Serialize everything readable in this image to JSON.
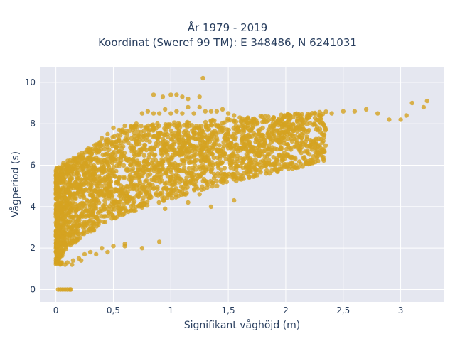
{
  "chart_data": {
    "type": "scatter",
    "title_line1": "År 1979 - 2019",
    "title_line2": "Koordinat (Sweref 99 TM): E 348486, N 6241031",
    "xlabel": "Signifikant våghöjd (m)",
    "ylabel": "Vågperiod (s)",
    "xlim": [
      -0.14,
      3.38
    ],
    "ylim": [
      -0.6,
      10.75
    ],
    "x_ticks": [
      0,
      0.5,
      1,
      1.5,
      2,
      2.5,
      3
    ],
    "x_tick_labels": [
      "0",
      "0,5",
      "1",
      "1,5",
      "2",
      "2,5",
      "3"
    ],
    "y_ticks": [
      0,
      2,
      4,
      6,
      8,
      10
    ],
    "y_tick_labels": [
      "0",
      "2",
      "4",
      "6",
      "8",
      "10"
    ],
    "grid": true,
    "legend": "none",
    "colors": {
      "marker": "#d4a320",
      "plot_background": "#e5e7f0",
      "grid": "#ffffff",
      "text": "#2a3f5f"
    },
    "points": [
      [
        0.02,
        0
      ],
      [
        0.04,
        0
      ],
      [
        0.06,
        0
      ],
      [
        0.08,
        0
      ],
      [
        0.1,
        0
      ],
      [
        0.12,
        0
      ],
      [
        0.13,
        0
      ],
      [
        0.05,
        1.3
      ],
      [
        0.1,
        1.3
      ],
      [
        0.15,
        1.4
      ],
      [
        0.2,
        1.5
      ],
      [
        0.25,
        1.7
      ],
      [
        0.3,
        1.8
      ],
      [
        0.4,
        2.0
      ],
      [
        0.5,
        2.1
      ],
      [
        0.6,
        2.2
      ],
      [
        0.03,
        3.0
      ],
      [
        0.06,
        2.5
      ],
      [
        0.1,
        4.0
      ],
      [
        0.15,
        5.0
      ],
      [
        0.2,
        5.5
      ],
      [
        0.05,
        5.9
      ],
      [
        0.1,
        6.0
      ],
      [
        0.18,
        6.0
      ],
      [
        0.25,
        6.1
      ],
      [
        0.3,
        6.6
      ],
      [
        0.35,
        7.0
      ],
      [
        0.4,
        7.3
      ],
      [
        0.45,
        7.5
      ],
      [
        0.5,
        7.8
      ],
      [
        0.55,
        7.7
      ],
      [
        0.6,
        7.9
      ],
      [
        0.7,
        8.0
      ],
      [
        0.75,
        8.5
      ],
      [
        0.8,
        8.6
      ],
      [
        0.85,
        8.5
      ],
      [
        0.9,
        8.5
      ],
      [
        0.95,
        8.7
      ],
      [
        1.0,
        8.5
      ],
      [
        1.05,
        8.6
      ],
      [
        1.1,
        8.5
      ],
      [
        1.15,
        8.8
      ],
      [
        1.2,
        8.5
      ],
      [
        1.25,
        8.8
      ],
      [
        1.3,
        8.6
      ],
      [
        1.35,
        8.6
      ],
      [
        1.4,
        8.6
      ],
      [
        1.45,
        8.7
      ],
      [
        1.5,
        8.5
      ],
      [
        1.55,
        8.4
      ],
      [
        1.6,
        8.3
      ],
      [
        0.85,
        9.4
      ],
      [
        0.93,
        9.3
      ],
      [
        1.0,
        9.4
      ],
      [
        1.05,
        9.4
      ],
      [
        1.1,
        9.3
      ],
      [
        1.15,
        9.2
      ],
      [
        1.25,
        9.3
      ],
      [
        1.28,
        10.2
      ],
      [
        0.5,
        4.0
      ],
      [
        0.6,
        4.5
      ],
      [
        0.7,
        5.0
      ],
      [
        0.8,
        5.5
      ],
      [
        0.9,
        6.0
      ],
      [
        1.0,
        6.3
      ],
      [
        1.1,
        6.6
      ],
      [
        1.2,
        6.9
      ],
      [
        1.3,
        7.1
      ],
      [
        1.4,
        7.3
      ],
      [
        1.5,
        7.5
      ],
      [
        1.6,
        7.6
      ],
      [
        1.7,
        7.7
      ],
      [
        1.8,
        7.8
      ],
      [
        1.9,
        7.9
      ],
      [
        2.0,
        8.0
      ],
      [
        2.1,
        8.1
      ],
      [
        2.2,
        8.3
      ],
      [
        2.3,
        8.4
      ],
      [
        2.4,
        8.5
      ],
      [
        2.5,
        8.6
      ],
      [
        2.6,
        8.6
      ],
      [
        2.7,
        8.7
      ],
      [
        2.8,
        8.5
      ],
      [
        2.9,
        8.2
      ],
      [
        3.0,
        8.2
      ],
      [
        3.05,
        8.4
      ],
      [
        3.1,
        9.0
      ],
      [
        3.2,
        8.8
      ],
      [
        3.23,
        9.1
      ],
      [
        1.55,
        4.3
      ],
      [
        1.35,
        4.0
      ],
      [
        1.25,
        4.6
      ],
      [
        1.15,
        4.2
      ],
      [
        0.95,
        3.9
      ],
      [
        0.9,
        2.3
      ],
      [
        0.75,
        2.0
      ],
      [
        0.6,
        2.1
      ],
      [
        0.45,
        1.8
      ],
      [
        0.35,
        1.7
      ],
      [
        0.22,
        1.4
      ],
      [
        0.14,
        1.2
      ],
      [
        0.08,
        1.2
      ]
    ]
  }
}
